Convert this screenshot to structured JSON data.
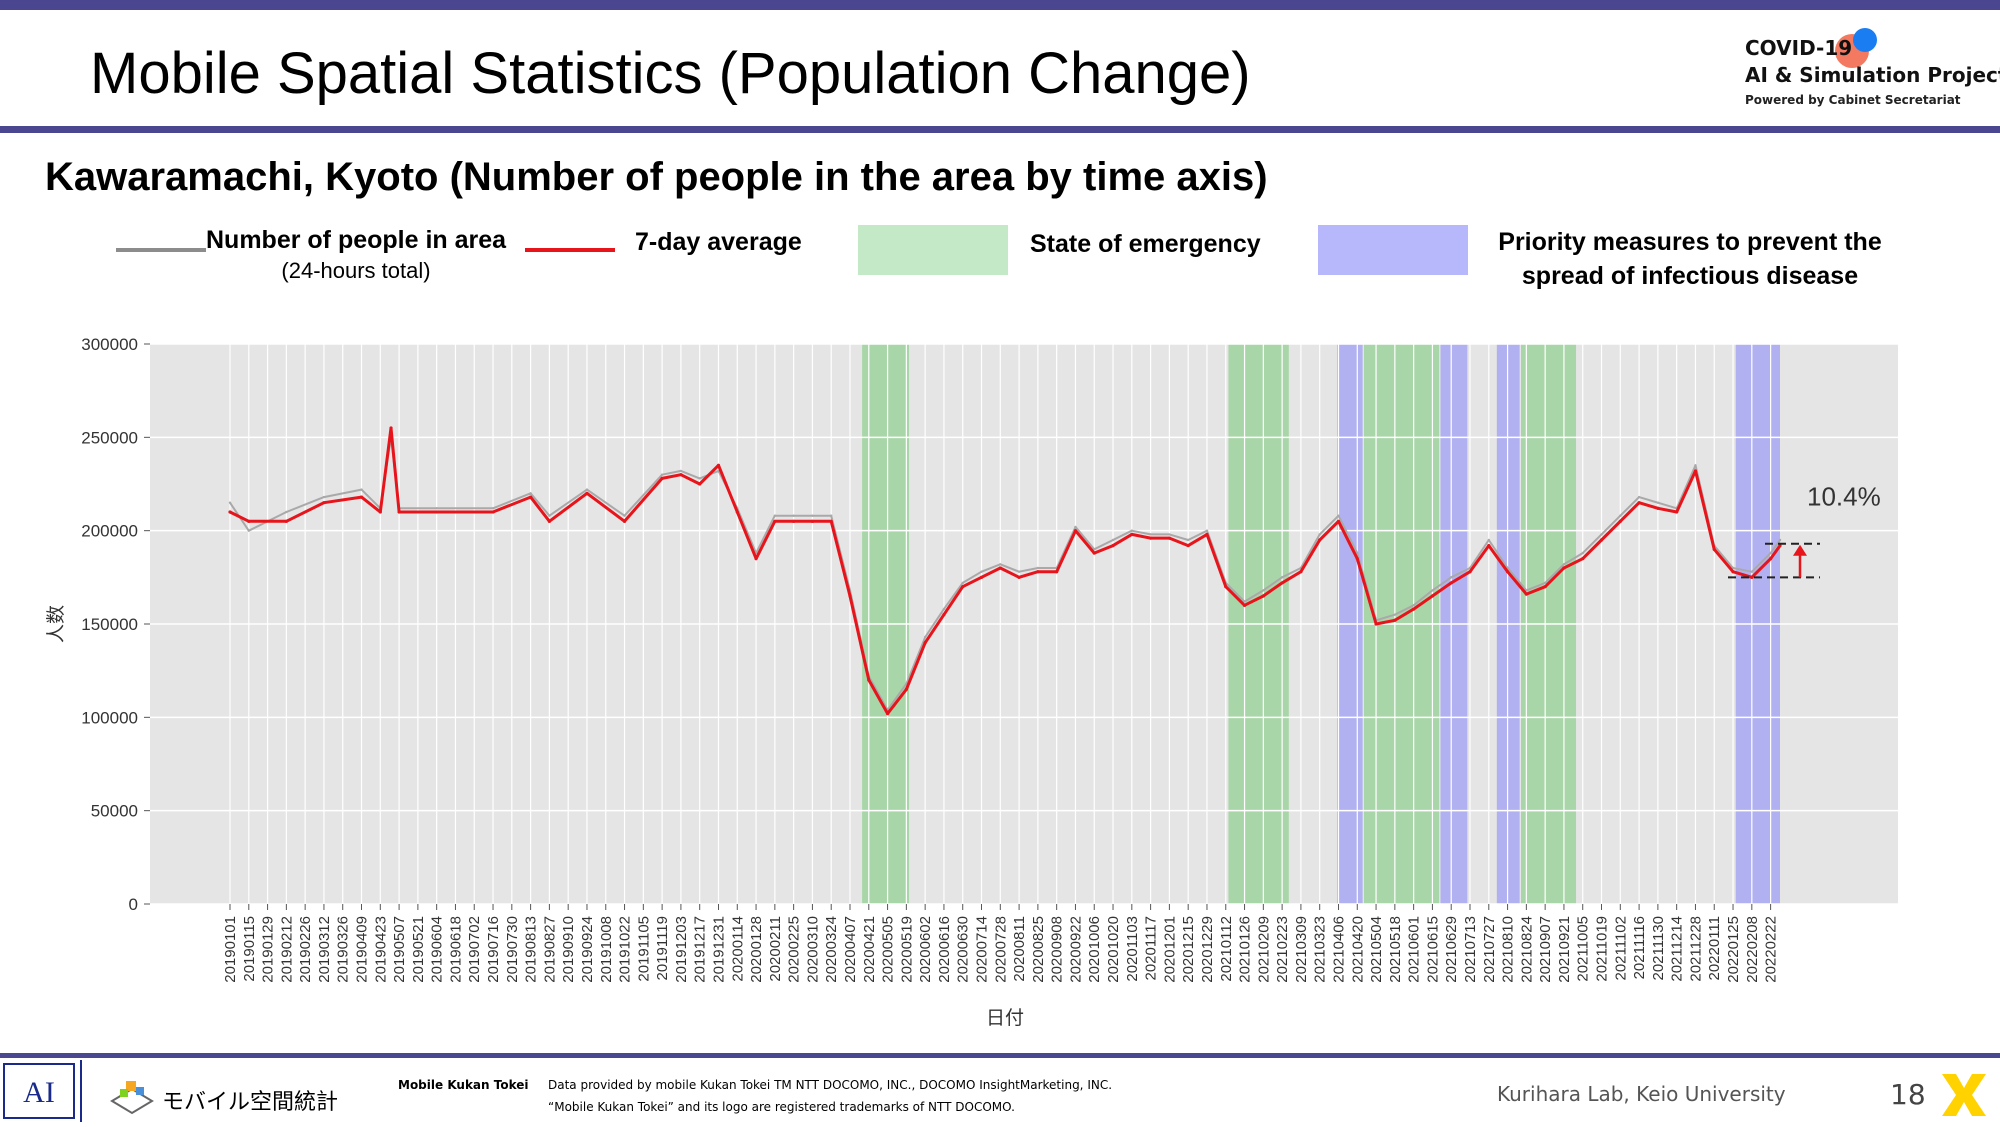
{
  "slide": {
    "title": "Mobile Spatial Statistics (Population Change)",
    "subtitle": "Kawaramachi, Kyoto (Number of people in the area by time axis)",
    "page_number": "18",
    "attribution": "Kurihara Lab, Keio University",
    "logo": {
      "line1": "COVID-19",
      "line2": "AI & Simulation Project",
      "line3": "Powered by Cabinet Secretariat"
    },
    "footer": {
      "brand_jp": "モバイル空間統計",
      "brand_en": "Mobile Kukan Tokei",
      "note1": "Data provided by mobile Kukan Tokei TM NTT DOCOMO, INC., DOCOMO InsightMarketing, INC.",
      "note2": "“Mobile Kukan Tokei” and its logo are registered trademarks of NTT DOCOMO."
    }
  },
  "legend": {
    "daily_line1": "Number of people in area",
    "daily_line2": "(24-hours total)",
    "avg": "7-day average",
    "emergency": "State of emergency",
    "priority_line1": "Priority measures to prevent the",
    "priority_line2": "spread of infectious disease"
  },
  "colors": {
    "accent_bar": "#4a4690",
    "daily_line": "#a9a9a9",
    "avg_line": "#e8141b",
    "emergency_band": "#9fd49f",
    "priority_band": "#a8a8f5",
    "plot_bg": "#e5e5e5"
  },
  "chart_data": {
    "type": "line",
    "xlabel": "日付",
    "ylabel": "人数",
    "ylim": [
      0,
      300000
    ],
    "yticks": [
      "0",
      "50000",
      "100000",
      "150000",
      "200000",
      "250000",
      "300000"
    ],
    "date_start": "2019-01-01",
    "date_end": "2022-03-01",
    "xtick_labels": [
      "20190101",
      "20190115",
      "20190129",
      "20190212",
      "20190226",
      "20190312",
      "20190326",
      "20190409",
      "20190423",
      "20190507",
      "20190521",
      "20190604",
      "20190618",
      "20190702",
      "20190716",
      "20190730",
      "20190813",
      "20190827",
      "20190910",
      "20190924",
      "20191008",
      "20191022",
      "20191105",
      "20191119",
      "20191203",
      "20191217",
      "20191231",
      "20200114",
      "20200128",
      "20200211",
      "20200225",
      "20200310",
      "20200324",
      "20200407",
      "20200421",
      "20200505",
      "20200519",
      "20200602",
      "20200616",
      "20200630",
      "20200714",
      "20200728",
      "20200811",
      "20200825",
      "20200908",
      "20200922",
      "20201006",
      "20201020",
      "20201103",
      "20201117",
      "20201201",
      "20201215",
      "20201229",
      "20210112",
      "20210126",
      "20210209",
      "20210223",
      "20210309",
      "20210323",
      "20210406",
      "20210420",
      "20210504",
      "20210518",
      "20210601",
      "20210615",
      "20210629",
      "20210713",
      "20210727",
      "20210810",
      "20210824",
      "20210907",
      "20210921",
      "20211005",
      "20211019",
      "20211102",
      "20211116",
      "20211130",
      "20211214",
      "20211228",
      "20220111",
      "20220125",
      "20220208",
      "20220222"
    ],
    "series": [
      {
        "name": "7-day average",
        "points": [
          [
            "2019-01-01",
            210000
          ],
          [
            "2019-01-15",
            205000
          ],
          [
            "2019-02-12",
            205000
          ],
          [
            "2019-03-12",
            215000
          ],
          [
            "2019-04-09",
            218000
          ],
          [
            "2019-04-23",
            210000
          ],
          [
            "2019-05-01",
            255000
          ],
          [
            "2019-05-07",
            210000
          ],
          [
            "2019-06-04",
            210000
          ],
          [
            "2019-07-16",
            210000
          ],
          [
            "2019-08-13",
            218000
          ],
          [
            "2019-08-27",
            205000
          ],
          [
            "2019-09-24",
            220000
          ],
          [
            "2019-10-22",
            205000
          ],
          [
            "2019-11-19",
            228000
          ],
          [
            "2019-12-03",
            230000
          ],
          [
            "2019-12-17",
            225000
          ],
          [
            "2019-12-31",
            235000
          ],
          [
            "2020-01-14",
            210000
          ],
          [
            "2020-01-28",
            185000
          ],
          [
            "2020-02-11",
            205000
          ],
          [
            "2020-02-25",
            205000
          ],
          [
            "2020-03-10",
            205000
          ],
          [
            "2020-03-24",
            205000
          ],
          [
            "2020-04-07",
            165000
          ],
          [
            "2020-04-21",
            120000
          ],
          [
            "2020-05-05",
            102000
          ],
          [
            "2020-05-19",
            115000
          ],
          [
            "2020-06-02",
            140000
          ],
          [
            "2020-06-16",
            155000
          ],
          [
            "2020-06-30",
            170000
          ],
          [
            "2020-07-14",
            175000
          ],
          [
            "2020-07-28",
            180000
          ],
          [
            "2020-08-11",
            175000
          ],
          [
            "2020-08-25",
            178000
          ],
          [
            "2020-09-08",
            178000
          ],
          [
            "2020-09-22",
            200000
          ],
          [
            "2020-10-06",
            188000
          ],
          [
            "2020-10-20",
            192000
          ],
          [
            "2020-11-03",
            198000
          ],
          [
            "2020-11-17",
            196000
          ],
          [
            "2020-12-01",
            196000
          ],
          [
            "2020-12-15",
            192000
          ],
          [
            "2020-12-29",
            198000
          ],
          [
            "2021-01-12",
            170000
          ],
          [
            "2021-01-26",
            160000
          ],
          [
            "2021-02-09",
            165000
          ],
          [
            "2021-02-23",
            172000
          ],
          [
            "2021-03-09",
            178000
          ],
          [
            "2021-03-23",
            195000
          ],
          [
            "2021-04-06",
            205000
          ],
          [
            "2021-04-20",
            185000
          ],
          [
            "2021-05-04",
            150000
          ],
          [
            "2021-05-18",
            152000
          ],
          [
            "2021-06-01",
            158000
          ],
          [
            "2021-06-15",
            165000
          ],
          [
            "2021-06-29",
            172000
          ],
          [
            "2021-07-13",
            178000
          ],
          [
            "2021-07-27",
            192000
          ],
          [
            "2021-08-10",
            178000
          ],
          [
            "2021-08-24",
            166000
          ],
          [
            "2021-09-07",
            170000
          ],
          [
            "2021-09-21",
            180000
          ],
          [
            "2021-10-05",
            185000
          ],
          [
            "2021-10-19",
            195000
          ],
          [
            "2021-11-02",
            205000
          ],
          [
            "2021-11-16",
            215000
          ],
          [
            "2021-11-30",
            212000
          ],
          [
            "2021-12-14",
            210000
          ],
          [
            "2021-12-28",
            232000
          ],
          [
            "2022-01-11",
            190000
          ],
          [
            "2022-01-25",
            178000
          ],
          [
            "2022-02-08",
            175000
          ],
          [
            "2022-02-22",
            185000
          ],
          [
            "2022-03-01",
            192000
          ]
        ]
      },
      {
        "name": "Number of people in area",
        "points": [
          [
            "2019-01-01",
            215000
          ],
          [
            "2019-01-15",
            200000
          ],
          [
            "2019-02-12",
            210000
          ],
          [
            "2019-03-12",
            218000
          ],
          [
            "2019-04-09",
            222000
          ],
          [
            "2019-04-23",
            212000
          ],
          [
            "2019-05-01",
            250000
          ],
          [
            "2019-05-07",
            212000
          ],
          [
            "2019-06-04",
            212000
          ],
          [
            "2019-07-16",
            212000
          ],
          [
            "2019-08-13",
            220000
          ],
          [
            "2019-08-27",
            208000
          ],
          [
            "2019-09-24",
            222000
          ],
          [
            "2019-10-22",
            208000
          ],
          [
            "2019-11-19",
            230000
          ],
          [
            "2019-12-03",
            232000
          ],
          [
            "2019-12-17",
            228000
          ],
          [
            "2019-12-31",
            232000
          ],
          [
            "2020-01-14",
            212000
          ],
          [
            "2020-01-28",
            188000
          ],
          [
            "2020-02-11",
            208000
          ],
          [
            "2020-02-25",
            208000
          ],
          [
            "2020-03-10",
            208000
          ],
          [
            "2020-03-24",
            208000
          ],
          [
            "2020-04-07",
            168000
          ],
          [
            "2020-04-21",
            122000
          ],
          [
            "2020-05-05",
            104000
          ],
          [
            "2020-05-19",
            118000
          ],
          [
            "2020-06-02",
            143000
          ],
          [
            "2020-06-16",
            158000
          ],
          [
            "2020-06-30",
            172000
          ],
          [
            "2020-07-14",
            178000
          ],
          [
            "2020-07-28",
            182000
          ],
          [
            "2020-08-11",
            178000
          ],
          [
            "2020-08-25",
            180000
          ],
          [
            "2020-09-08",
            180000
          ],
          [
            "2020-09-22",
            202000
          ],
          [
            "2020-10-06",
            190000
          ],
          [
            "2020-10-20",
            195000
          ],
          [
            "2020-11-03",
            200000
          ],
          [
            "2020-11-17",
            198000
          ],
          [
            "2020-12-01",
            198000
          ],
          [
            "2020-12-15",
            195000
          ],
          [
            "2020-12-29",
            200000
          ],
          [
            "2021-01-12",
            172000
          ],
          [
            "2021-01-26",
            162000
          ],
          [
            "2021-02-09",
            168000
          ],
          [
            "2021-02-23",
            175000
          ],
          [
            "2021-03-09",
            180000
          ],
          [
            "2021-03-23",
            198000
          ],
          [
            "2021-04-06",
            208000
          ],
          [
            "2021-04-20",
            188000
          ],
          [
            "2021-05-04",
            152000
          ],
          [
            "2021-05-18",
            155000
          ],
          [
            "2021-06-01",
            160000
          ],
          [
            "2021-06-15",
            168000
          ],
          [
            "2021-06-29",
            175000
          ],
          [
            "2021-07-13",
            180000
          ],
          [
            "2021-07-27",
            195000
          ],
          [
            "2021-08-10",
            180000
          ],
          [
            "2021-08-24",
            168000
          ],
          [
            "2021-09-07",
            172000
          ],
          [
            "2021-09-21",
            182000
          ],
          [
            "2021-10-05",
            188000
          ],
          [
            "2021-10-19",
            198000
          ],
          [
            "2021-11-02",
            208000
          ],
          [
            "2021-11-16",
            218000
          ],
          [
            "2021-11-30",
            215000
          ],
          [
            "2021-12-14",
            212000
          ],
          [
            "2021-12-28",
            235000
          ],
          [
            "2022-01-11",
            192000
          ],
          [
            "2022-01-25",
            180000
          ],
          [
            "2022-02-08",
            178000
          ],
          [
            "2022-02-22",
            188000
          ],
          [
            "2022-03-01",
            195000
          ]
        ]
      }
    ],
    "bands": [
      {
        "type": "emergency",
        "start": "2020-04-16",
        "end": "2020-05-21"
      },
      {
        "type": "emergency",
        "start": "2021-01-14",
        "end": "2021-02-28"
      },
      {
        "type": "priority",
        "start": "2021-04-05",
        "end": "2021-04-24"
      },
      {
        "type": "emergency",
        "start": "2021-04-25",
        "end": "2021-06-20"
      },
      {
        "type": "priority",
        "start": "2021-06-21",
        "end": "2021-07-11"
      },
      {
        "type": "priority",
        "start": "2021-08-02",
        "end": "2021-08-19"
      },
      {
        "type": "emergency",
        "start": "2021-08-20",
        "end": "2021-09-30"
      },
      {
        "type": "priority",
        "start": "2022-01-27",
        "end": "2022-03-01"
      }
    ],
    "annotation": {
      "text": "10.4%",
      "from_value": 175000,
      "to_value": 193000
    }
  }
}
